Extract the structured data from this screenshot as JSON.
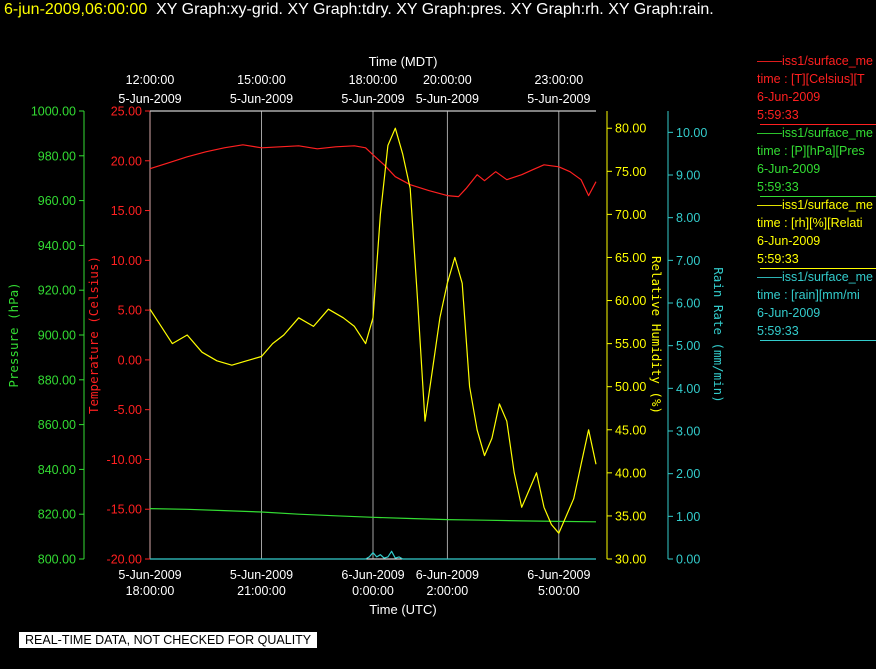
{
  "header": {
    "timestamp": "6-jun-2009,06:00:00",
    "graphs": "XY Graph:xy-grid.  XY Graph:tdry.  XY Graph:pres.  XY Graph:rh.  XY Graph:rain."
  },
  "notice": "REAL-TIME DATA, NOT CHECKED FOR QUALITY",
  "legend": [
    {
      "color": "#ff2020",
      "lines": [
        "iss1/surface_me",
        "time : [T][Celsius][T",
        "6-Jun-2009",
        "5:59:33"
      ]
    },
    {
      "color": "#33dd33",
      "lines": [
        "iss1/surface_me",
        "time : [P][hPa][Pres",
        "6-Jun-2009",
        "5:59:33"
      ]
    },
    {
      "color": "#ffff00",
      "lines": [
        "iss1/surface_me",
        "time : [rh][%][Relati",
        "6-Jun-2009",
        "5:59:33"
      ]
    },
    {
      "color": "#33cccc",
      "lines": [
        "iss1/surface_me",
        "time : [rain][mm/mi",
        "6-Jun-2009",
        "5:59:33"
      ]
    }
  ],
  "chart_data": {
    "type": "line",
    "xlabel_top": "Time (MDT)",
    "xlabel_bottom": "Time (UTC)",
    "top_ticks": [
      {
        "x": 0,
        "date": "5-Jun-2009",
        "time": "12:00:00"
      },
      {
        "x": 3,
        "date": "5-Jun-2009",
        "time": "15:00:00"
      },
      {
        "x": 6,
        "date": "5-Jun-2009",
        "time": "18:00:00"
      },
      {
        "x": 8,
        "date": "5-Jun-2009",
        "time": "20:00:00"
      },
      {
        "x": 11,
        "date": "5-Jun-2009",
        "time": "23:00:00"
      }
    ],
    "bottom_ticks": [
      {
        "x": 0,
        "date": "5-Jun-2009",
        "time": "18:00:00"
      },
      {
        "x": 3,
        "date": "5-Jun-2009",
        "time": "21:00:00"
      },
      {
        "x": 6,
        "date": "6-Jun-2009",
        "time": "0:00:00"
      },
      {
        "x": 8,
        "date": "6-Jun-2009",
        "time": "2:00:00"
      },
      {
        "x": 11,
        "date": "6-Jun-2009",
        "time": "5:00:00"
      }
    ],
    "xlim": [
      0,
      12
    ],
    "axes": {
      "pressure": {
        "label": "Pressure (hPa)",
        "color": "#33dd33",
        "ylim": [
          800,
          1000
        ],
        "ticks": [
          "800.00",
          "820.00",
          "840.00",
          "860.00",
          "880.00",
          "900.00",
          "920.00",
          "940.00",
          "960.00",
          "980.00",
          "1000.00"
        ]
      },
      "temperature": {
        "label": "Temperature (Celsius)",
        "color": "#ff2020",
        "ylim": [
          -20,
          25
        ],
        "ticks": [
          "-20.00",
          "-15.00",
          "-10.00",
          "-5.00",
          "0.00",
          "5.00",
          "10.00",
          "15.00",
          "20.00",
          "25.00"
        ]
      },
      "rh": {
        "label": "Relative Humidity (%)",
        "color": "#ffff00",
        "ylim": [
          30,
          82
        ],
        "ticks": [
          "30.00",
          "35.00",
          "40.00",
          "45.00",
          "50.00",
          "55.00",
          "60.00",
          "65.00",
          "70.00",
          "75.00",
          "80.00"
        ]
      },
      "rain": {
        "label": "Rain Rate (mm/min)",
        "color": "#33cccc",
        "ylim": [
          0,
          10.5
        ],
        "ticks": [
          "0.00",
          "1.00",
          "2.00",
          "3.00",
          "4.00",
          "5.00",
          "6.00",
          "7.00",
          "8.00",
          "9.00",
          "10.00"
        ]
      }
    },
    "series": [
      {
        "name": "T",
        "axis": "temperature",
        "color": "#ff2020",
        "x": [
          0,
          0.5,
          1.0,
          1.5,
          2.0,
          2.5,
          3.0,
          3.5,
          4.0,
          4.5,
          5.0,
          5.5,
          5.8,
          6.0,
          6.3,
          6.6,
          7.0,
          7.5,
          8.0,
          8.3,
          8.5,
          8.8,
          9.0,
          9.3,
          9.6,
          10.0,
          10.3,
          10.6,
          11.0,
          11.3,
          11.6,
          11.8,
          12.0
        ],
        "y": [
          19.2,
          19.8,
          20.4,
          20.9,
          21.3,
          21.6,
          21.3,
          21.4,
          21.5,
          21.2,
          21.4,
          21.5,
          21.3,
          20.6,
          19.6,
          18.4,
          17.6,
          17.0,
          16.5,
          16.4,
          17.2,
          18.6,
          18.0,
          18.9,
          18.1,
          18.6,
          19.1,
          19.6,
          19.4,
          18.9,
          18.1,
          16.5,
          17.9
        ]
      },
      {
        "name": "P",
        "axis": "pressure",
        "color": "#33dd33",
        "x": [
          0,
          1,
          2,
          3,
          4,
          5,
          6,
          7,
          8,
          9,
          10,
          11,
          12
        ],
        "y": [
          822.5,
          822.2,
          821.6,
          821.0,
          820.0,
          819.3,
          818.6,
          818.1,
          817.6,
          817.3,
          817.0,
          816.8,
          816.6
        ]
      },
      {
        "name": "rh",
        "axis": "rh",
        "color": "#ffff00",
        "x": [
          0,
          0.3,
          0.6,
          1.0,
          1.4,
          1.8,
          2.2,
          2.6,
          3.0,
          3.3,
          3.6,
          4.0,
          4.4,
          4.8,
          5.2,
          5.5,
          5.8,
          6.0,
          6.2,
          6.4,
          6.6,
          6.8,
          7.0,
          7.2,
          7.4,
          7.6,
          7.8,
          8.0,
          8.2,
          8.4,
          8.6,
          8.8,
          9.0,
          9.2,
          9.4,
          9.6,
          9.8,
          10.0,
          10.2,
          10.4,
          10.6,
          10.8,
          11.0,
          11.2,
          11.4,
          11.6,
          11.8,
          12.0
        ],
        "y": [
          59,
          57,
          55,
          56,
          54,
          53,
          52.5,
          53,
          53.5,
          55,
          56,
          58,
          57,
          59,
          58,
          57,
          55,
          58,
          70,
          78,
          80,
          77,
          73,
          60,
          46,
          52,
          58,
          62,
          65,
          62,
          50,
          45,
          42,
          44,
          48,
          46,
          40,
          36,
          38,
          40,
          36,
          34,
          33,
          35,
          37,
          41,
          45,
          41
        ]
      },
      {
        "name": "rain",
        "axis": "rain",
        "color": "#33cccc",
        "x": [
          0,
          5.8,
          5.9,
          6.0,
          6.1,
          6.2,
          6.3,
          6.4,
          6.5,
          6.6,
          6.7,
          6.8,
          12.0
        ],
        "y": [
          0,
          0,
          0.05,
          0.15,
          0.05,
          0.1,
          0.02,
          0.05,
          0.18,
          0.02,
          0.05,
          0,
          0
        ]
      }
    ]
  }
}
